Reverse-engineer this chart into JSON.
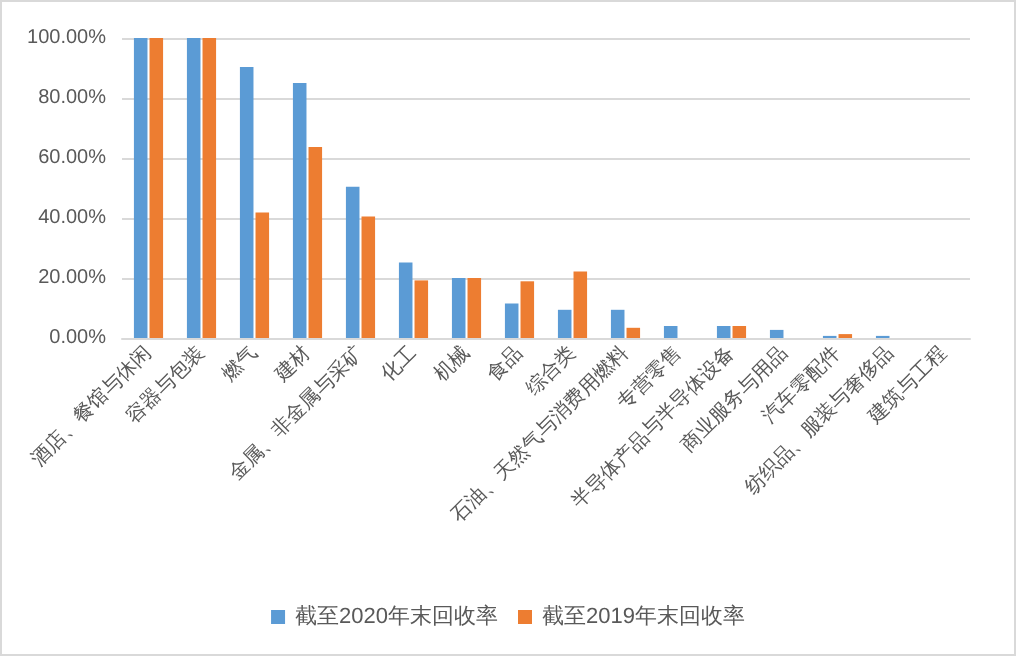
{
  "chart_data": {
    "type": "bar",
    "categories": [
      "酒店、餐馆与休闲",
      "容器与包装",
      "燃气",
      "建材",
      "金属、非金属与采矿",
      "化工",
      "机械",
      "食品",
      "综合类",
      "石油、天然气与消费用燃料",
      "专营零售",
      "半导体产品与半导体设备",
      "商业服务与用品",
      "汽车零配件",
      "纺织品、服装与奢侈品",
      "建筑与工程"
    ],
    "series": [
      {
        "name": "截至2020年末回收率",
        "color": "#5b9bd5",
        "values": [
          100,
          100,
          90.3,
          85,
          50.4,
          25.2,
          20,
          11.5,
          9.4,
          9.4,
          4,
          4,
          2.7,
          0.7,
          0.7,
          0
        ]
      },
      {
        "name": "截至2019年末回收率",
        "color": "#ed7d31",
        "values": [
          100,
          100,
          41.8,
          63.7,
          40.5,
          19.2,
          20,
          18.9,
          22.2,
          3.4,
          0,
          4,
          0,
          1.3,
          0,
          0
        ]
      }
    ],
    "ylim": [
      0,
      100
    ],
    "yticks": [
      {
        "value": 0,
        "label": "0.00%"
      },
      {
        "value": 20,
        "label": "20.00%"
      },
      {
        "value": 40,
        "label": "40.00%"
      },
      {
        "value": 60,
        "label": "60.00%"
      },
      {
        "value": 80,
        "label": "80.00%"
      },
      {
        "value": 100,
        "label": "100.00%"
      }
    ],
    "grid": "y",
    "legend": "bottom"
  }
}
